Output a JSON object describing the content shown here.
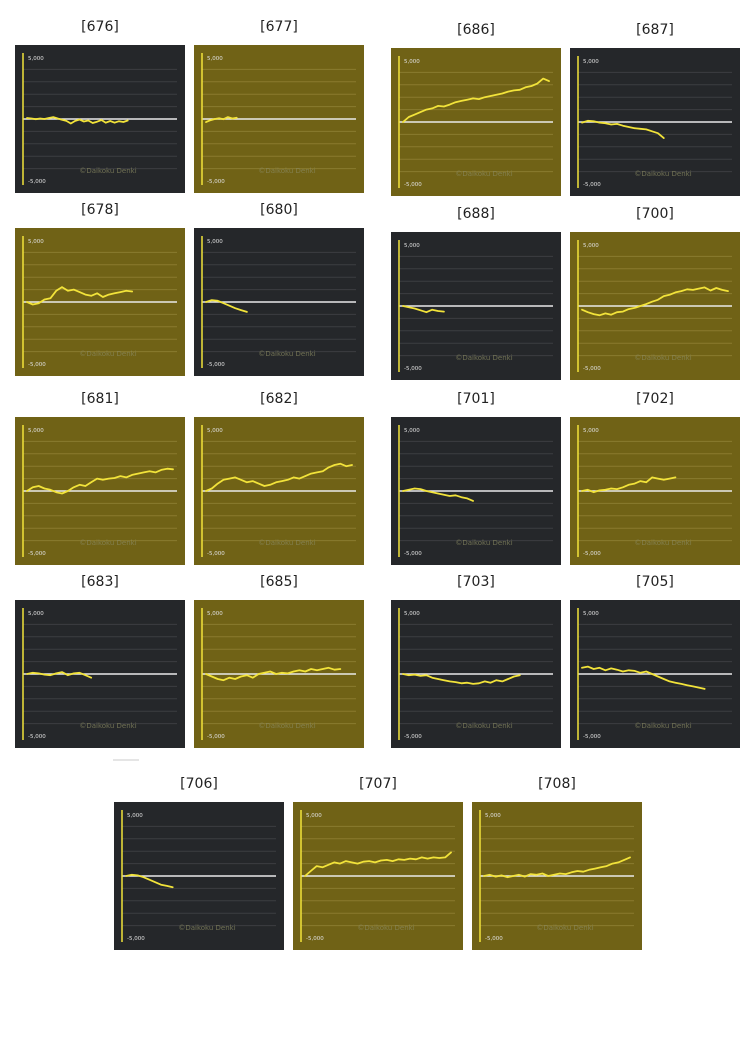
{
  "colors": {
    "dark_bg": "#25272a",
    "gold_bg": "#706216",
    "line": "#f2e33a",
    "zero_line": "#e9e9e9",
    "grid_dark": "#3c3e41",
    "grid_gold": "#8a7b2f",
    "axis": "#f2e33a",
    "tick_text": "#e0e0e0",
    "watermark": "#8a8a62"
  },
  "axis_labels": {
    "top": "5,000",
    "bottom": "-5,000"
  },
  "watermark": "©Daikoku Denki",
  "chart_data": [
    {
      "type": "line",
      "title": "[676]",
      "theme": "dark",
      "ylim": [
        -5000,
        5000
      ],
      "xlim": [
        0,
        100
      ],
      "x": [
        0,
        3,
        6,
        9,
        12,
        15,
        18,
        21,
        24,
        27,
        30,
        33,
        36,
        39,
        42,
        45,
        48,
        51,
        54,
        57,
        60,
        63,
        66,
        69
      ],
      "values": [
        80,
        40,
        -20,
        40,
        0,
        80,
        150,
        40,
        -60,
        -150,
        -360,
        -150,
        -40,
        -200,
        -120,
        -320,
        -220,
        -80,
        -300,
        -160,
        -300,
        -180,
        -240,
        -120
      ]
    },
    {
      "type": "line",
      "title": "[677]",
      "theme": "gold",
      "ylim": [
        -5000,
        5000
      ],
      "xlim": [
        0,
        100
      ],
      "x": [
        0,
        3,
        6,
        9,
        12,
        15,
        18,
        21
      ],
      "values": [
        -250,
        -100,
        0,
        60,
        -20,
        150,
        40,
        100
      ]
    },
    {
      "type": "line",
      "title": "[686]",
      "theme": "gold",
      "ylim": [
        -5000,
        5000
      ],
      "xlim": [
        0,
        100
      ],
      "x": [
        0,
        4,
        8,
        12,
        16,
        20,
        24,
        28,
        32,
        36,
        40,
        44,
        48,
        52,
        56,
        60,
        64,
        68,
        72,
        76,
        80,
        84,
        88,
        92,
        96,
        100
      ],
      "values": [
        0,
        400,
        600,
        800,
        1000,
        1100,
        1300,
        1250,
        1400,
        1600,
        1700,
        1800,
        1900,
        1850,
        2000,
        2100,
        2200,
        2300,
        2450,
        2550,
        2600,
        2800,
        2900,
        3100,
        3500,
        3300
      ]
    },
    {
      "type": "line",
      "title": "[687]",
      "theme": "dark",
      "ylim": [
        -5000,
        5000
      ],
      "xlim": [
        0,
        100
      ],
      "x": [
        0,
        4,
        8,
        12,
        16,
        20,
        24,
        28,
        32,
        36,
        40,
        44,
        48,
        52,
        56
      ],
      "values": [
        -50,
        100,
        60,
        -50,
        -100,
        -200,
        -150,
        -300,
        -400,
        -500,
        -550,
        -600,
        -750,
        -900,
        -1300
      ]
    },
    {
      "type": "line",
      "title": "[678]",
      "theme": "gold",
      "ylim": [
        -5000,
        5000
      ],
      "xlim": [
        0,
        100
      ],
      "x": [
        0,
        4,
        8,
        12,
        16,
        20,
        24,
        28,
        32,
        36,
        40,
        44,
        48,
        52,
        56,
        60,
        64,
        68,
        72
      ],
      "values": [
        0,
        -200,
        -100,
        200,
        300,
        900,
        1200,
        900,
        1000,
        800,
        600,
        500,
        700,
        400,
        600,
        700,
        800,
        900,
        850
      ]
    },
    {
      "type": "line",
      "title": "[680]",
      "theme": "dark",
      "ylim": [
        -5000,
        5000
      ],
      "xlim": [
        0,
        100
      ],
      "x": [
        0,
        4,
        8,
        12,
        16,
        20,
        24,
        28
      ],
      "values": [
        0,
        150,
        100,
        -100,
        -300,
        -500,
        -650,
        -800
      ]
    },
    {
      "type": "line",
      "title": "[688]",
      "theme": "dark",
      "ylim": [
        -5000,
        5000
      ],
      "xlim": [
        0,
        100
      ],
      "x": [
        0,
        4,
        8,
        12,
        16,
        20,
        24,
        28
      ],
      "values": [
        0,
        -100,
        -200,
        -350,
        -500,
        -300,
        -400,
        -450
      ]
    },
    {
      "type": "line",
      "title": "[700]",
      "theme": "gold",
      "ylim": [
        -5000,
        5000
      ],
      "xlim": [
        0,
        100
      ],
      "x": [
        0,
        4,
        8,
        12,
        16,
        20,
        24,
        28,
        32,
        36,
        40,
        44,
        48,
        52,
        56,
        60,
        64,
        68,
        72,
        76,
        80,
        84,
        88,
        92,
        96,
        100
      ],
      "values": [
        -300,
        -500,
        -650,
        -750,
        -600,
        -700,
        -500,
        -450,
        -250,
        -150,
        0,
        150,
        350,
        500,
        800,
        900,
        1100,
        1200,
        1350,
        1300,
        1400,
        1500,
        1250,
        1450,
        1300,
        1200
      ]
    },
    {
      "type": "line",
      "title": "[681]",
      "theme": "gold",
      "ylim": [
        -5000,
        5000
      ],
      "xlim": [
        0,
        100
      ],
      "x": [
        0,
        4,
        8,
        12,
        16,
        20,
        24,
        28,
        32,
        36,
        40,
        44,
        48,
        52,
        56,
        60,
        64,
        68,
        72,
        76,
        80,
        84,
        88,
        92,
        96,
        100
      ],
      "values": [
        0,
        300,
        400,
        200,
        100,
        -100,
        -200,
        0,
        300,
        500,
        400,
        700,
        1000,
        900,
        1000,
        1050,
        1200,
        1100,
        1300,
        1400,
        1500,
        1600,
        1500,
        1700,
        1800,
        1750
      ]
    },
    {
      "type": "line",
      "title": "[682]",
      "theme": "gold",
      "ylim": [
        -5000,
        5000
      ],
      "xlim": [
        0,
        100
      ],
      "x": [
        0,
        4,
        8,
        12,
        16,
        20,
        24,
        28,
        32,
        36,
        40,
        44,
        48,
        52,
        56,
        60,
        64,
        68,
        72,
        76,
        80,
        84,
        88,
        92,
        96,
        100
      ],
      "values": [
        0,
        200,
        600,
        900,
        1000,
        1100,
        900,
        700,
        800,
        600,
        400,
        500,
        700,
        800,
        900,
        1100,
        1000,
        1200,
        1400,
        1500,
        1600,
        1900,
        2100,
        2200,
        2000,
        2100
      ]
    },
    {
      "type": "line",
      "title": "[701]",
      "theme": "dark",
      "ylim": [
        -5000,
        5000
      ],
      "xlim": [
        0,
        100
      ],
      "x": [
        0,
        4,
        8,
        12,
        16,
        20,
        24,
        28,
        32,
        36,
        40,
        44,
        48
      ],
      "values": [
        0,
        100,
        200,
        150,
        0,
        -100,
        -200,
        -300,
        -400,
        -350,
        -500,
        -600,
        -800
      ]
    },
    {
      "type": "line",
      "title": "[702]",
      "theme": "gold",
      "ylim": [
        -5000,
        5000
      ],
      "xlim": [
        0,
        100
      ],
      "x": [
        0,
        4,
        8,
        12,
        16,
        20,
        24,
        28,
        32,
        36,
        40,
        44,
        48,
        52,
        56,
        60,
        64
      ],
      "values": [
        0,
        100,
        -100,
        50,
        100,
        200,
        150,
        300,
        500,
        600,
        800,
        700,
        1100,
        1000,
        900,
        1000,
        1100
      ]
    },
    {
      "type": "line",
      "title": "[683]",
      "theme": "dark",
      "ylim": [
        -5000,
        5000
      ],
      "xlim": [
        0,
        100
      ],
      "x": [
        0,
        4,
        8,
        12,
        16,
        20,
        24,
        28,
        32,
        36,
        40,
        44
      ],
      "values": [
        0,
        100,
        50,
        -50,
        -100,
        50,
        150,
        -100,
        50,
        100,
        -100,
        -300
      ]
    },
    {
      "type": "line",
      "title": "[685]",
      "theme": "gold",
      "ylim": [
        -5000,
        5000
      ],
      "xlim": [
        0,
        100
      ],
      "x": [
        0,
        4,
        8,
        12,
        16,
        20,
        24,
        28,
        32,
        36,
        40,
        44,
        48,
        52,
        56,
        60,
        64,
        68,
        72,
        76,
        80,
        84,
        88,
        92
      ],
      "values": [
        0,
        -200,
        -400,
        -500,
        -300,
        -400,
        -200,
        -100,
        -300,
        0,
        100,
        200,
        0,
        100,
        50,
        200,
        300,
        200,
        400,
        300,
        400,
        500,
        350,
        400
      ]
    },
    {
      "type": "line",
      "title": "[703]",
      "theme": "dark",
      "ylim": [
        -5000,
        5000
      ],
      "xlim": [
        0,
        100
      ],
      "x": [
        0,
        4,
        8,
        12,
        16,
        20,
        24,
        28,
        32,
        36,
        40,
        44,
        48,
        52,
        56,
        60,
        64,
        68,
        72,
        76,
        80
      ],
      "values": [
        0,
        -100,
        -50,
        -150,
        -100,
        -300,
        -400,
        -500,
        -600,
        -650,
        -750,
        -700,
        -800,
        -750,
        -600,
        -700,
        -500,
        -600,
        -400,
        -200,
        -100
      ]
    },
    {
      "type": "line",
      "title": "[705]",
      "theme": "dark",
      "ylim": [
        -5000,
        5000
      ],
      "xlim": [
        0,
        100
      ],
      "x": [
        0,
        4,
        8,
        12,
        16,
        20,
        24,
        28,
        32,
        36,
        40,
        44,
        48,
        52,
        56,
        60,
        64,
        68,
        72,
        76,
        80,
        84
      ],
      "values": [
        500,
        600,
        400,
        500,
        300,
        450,
        350,
        200,
        300,
        250,
        100,
        200,
        0,
        -200,
        -400,
        -600,
        -700,
        -800,
        -900,
        -1000,
        -1100,
        -1200
      ]
    },
    {
      "type": "line",
      "title": "[706]",
      "theme": "dark",
      "ylim": [
        -5000,
        5000
      ],
      "xlim": [
        0,
        100
      ],
      "x": [
        0,
        4,
        8,
        12,
        16,
        20,
        24,
        28,
        32
      ],
      "values": [
        0,
        100,
        50,
        -100,
        -300,
        -500,
        -700,
        -800,
        -900
      ]
    },
    {
      "type": "line",
      "title": "[707]",
      "theme": "gold",
      "ylim": [
        -5000,
        5000
      ],
      "xlim": [
        0,
        100
      ],
      "x": [
        0,
        4,
        8,
        12,
        16,
        20,
        24,
        28,
        32,
        36,
        40,
        44,
        48,
        52,
        56,
        60,
        64,
        68,
        72,
        76,
        80,
        84,
        88,
        92,
        96,
        100
      ],
      "values": [
        0,
        400,
        800,
        700,
        900,
        1100,
        1000,
        1200,
        1100,
        1000,
        1150,
        1200,
        1100,
        1250,
        1300,
        1200,
        1350,
        1300,
        1400,
        1350,
        1500,
        1400,
        1500,
        1450,
        1500,
        1900
      ]
    },
    {
      "type": "line",
      "title": "[708]",
      "theme": "gold",
      "ylim": [
        -5000,
        5000
      ],
      "xlim": [
        0,
        100
      ],
      "x": [
        0,
        4,
        8,
        12,
        16,
        20,
        24,
        28,
        32,
        36,
        40,
        44,
        48,
        52,
        56,
        60,
        64,
        68,
        72,
        76,
        80,
        84,
        88,
        92,
        96,
        100
      ],
      "values": [
        0,
        100,
        -50,
        50,
        -100,
        0,
        100,
        -50,
        150,
        100,
        200,
        0,
        100,
        200,
        150,
        300,
        400,
        350,
        500,
        600,
        700,
        800,
        1000,
        1100,
        1300,
        1500
      ]
    }
  ]
}
